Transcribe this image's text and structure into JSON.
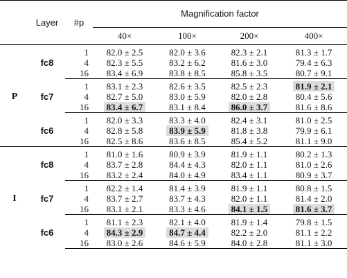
{
  "header": {
    "layer": "Layer",
    "p": "#p",
    "magnification": "Magnification factor",
    "mags": [
      "40×",
      "100×",
      "200×",
      "400×"
    ]
  },
  "groups": [
    {
      "label": "P",
      "layers": [
        {
          "name": "fc8",
          "rows": [
            {
              "p": "1",
              "cells": [
                {
                  "t": "82.0 ± 2.5",
                  "hl": false
                },
                {
                  "t": "82.0 ± 3.6",
                  "hl": false
                },
                {
                  "t": "82.3 ± 2.1",
                  "hl": false
                },
                {
                  "t": "81.3 ± 1.7",
                  "hl": false
                }
              ]
            },
            {
              "p": "4",
              "cells": [
                {
                  "t": "82.3 ± 5.5",
                  "hl": false
                },
                {
                  "t": "83.2 ± 6.2",
                  "hl": false
                },
                {
                  "t": "81.6 ± 3.0",
                  "hl": false
                },
                {
                  "t": "79.4 ± 6.3",
                  "hl": false
                }
              ]
            },
            {
              "p": "16",
              "cells": [
                {
                  "t": "83.4 ± 6.9",
                  "hl": false
                },
                {
                  "t": "83.8 ± 8.5",
                  "hl": false
                },
                {
                  "t": "85.8 ± 3.5",
                  "hl": false
                },
                {
                  "t": "80.7 ± 9.1",
                  "hl": false
                }
              ]
            }
          ]
        },
        {
          "name": "fc7",
          "rows": [
            {
              "p": "1",
              "cells": [
                {
                  "t": "83.1 ± 2.3",
                  "hl": false
                },
                {
                  "t": "82.6 ± 3.5",
                  "hl": false
                },
                {
                  "t": "82.5 ± 2.3",
                  "hl": false
                },
                {
                  "t": "81.9 ± 2.1",
                  "hl": true
                }
              ]
            },
            {
              "p": "4",
              "cells": [
                {
                  "t": "82.7 ± 5.0",
                  "hl": false
                },
                {
                  "t": "83.0 ± 5.9",
                  "hl": false
                },
                {
                  "t": "82.0 ± 2.8",
                  "hl": false
                },
                {
                  "t": "80.4 ± 5.6",
                  "hl": false
                }
              ]
            },
            {
              "p": "16",
              "cells": [
                {
                  "t": "83.4 ± 6.7",
                  "hl": true
                },
                {
                  "t": "83.1 ± 8.4",
                  "hl": false
                },
                {
                  "t": "86.0 ± 3.7",
                  "hl": true
                },
                {
                  "t": "81.6 ± 8.6",
                  "hl": false
                }
              ]
            }
          ]
        },
        {
          "name": "fc6",
          "rows": [
            {
              "p": "1",
              "cells": [
                {
                  "t": "82.0 ± 3.3",
                  "hl": false
                },
                {
                  "t": "83.3 ± 4.0",
                  "hl": false
                },
                {
                  "t": "82.4 ± 3.1",
                  "hl": false
                },
                {
                  "t": "81.0 ± 2.5",
                  "hl": false
                }
              ]
            },
            {
              "p": "4",
              "cells": [
                {
                  "t": "82.8 ± 5.8",
                  "hl": false
                },
                {
                  "t": "83.9 ± 5.9",
                  "hl": true
                },
                {
                  "t": "81.8 ± 3.8",
                  "hl": false
                },
                {
                  "t": "79.9 ± 6.1",
                  "hl": false
                }
              ]
            },
            {
              "p": "16",
              "cells": [
                {
                  "t": "82.5 ± 8.6",
                  "hl": false
                },
                {
                  "t": "83.6 ± 8.5",
                  "hl": false
                },
                {
                  "t": "85.4 ± 5.2",
                  "hl": false
                },
                {
                  "t": "81.1 ± 9.0",
                  "hl": false
                }
              ]
            }
          ]
        }
      ]
    },
    {
      "label": "I",
      "layers": [
        {
          "name": "fc8",
          "rows": [
            {
              "p": "1",
              "cells": [
                {
                  "t": "81.0 ± 1.6",
                  "hl": false
                },
                {
                  "t": "80.9 ± 3.9",
                  "hl": false
                },
                {
                  "t": "81.9 ± 1.1",
                  "hl": false
                },
                {
                  "t": "80.2 ± 1.3",
                  "hl": false
                }
              ]
            },
            {
              "p": "4",
              "cells": [
                {
                  "t": "83.7 ± 2.8",
                  "hl": false
                },
                {
                  "t": "84.4 ± 4.3",
                  "hl": false
                },
                {
                  "t": "82.0 ± 1.1",
                  "hl": false
                },
                {
                  "t": "81.0 ± 2.6",
                  "hl": false
                }
              ]
            },
            {
              "p": "16",
              "cells": [
                {
                  "t": "83.2 ± 2.4",
                  "hl": false
                },
                {
                  "t": "84.0 ± 4.9",
                  "hl": false
                },
                {
                  "t": "83.4 ± 1.1",
                  "hl": false
                },
                {
                  "t": "80.9 ± 3.7",
                  "hl": false
                }
              ]
            }
          ]
        },
        {
          "name": "fc7",
          "rows": [
            {
              "p": "1",
              "cells": [
                {
                  "t": "82.2 ± 1.4",
                  "hl": false
                },
                {
                  "t": "81.4 ± 3.9",
                  "hl": false
                },
                {
                  "t": "81.9 ± 1.1",
                  "hl": false
                },
                {
                  "t": "80.8 ± 1.5",
                  "hl": false
                }
              ]
            },
            {
              "p": "4",
              "cells": [
                {
                  "t": "83.7 ± 2.7",
                  "hl": false
                },
                {
                  "t": "83.7 ± 4.3",
                  "hl": false
                },
                {
                  "t": "82.0 ± 1.1",
                  "hl": false
                },
                {
                  "t": "81.4 ± 2.0",
                  "hl": false
                }
              ]
            },
            {
              "p": "16",
              "cells": [
                {
                  "t": "83.1 ± 2.1",
                  "hl": false
                },
                {
                  "t": "83.3 ± 4.6",
                  "hl": false
                },
                {
                  "t": "84.1 ± 1.5",
                  "hl": true
                },
                {
                  "t": "81.6 ± 3.7",
                  "hl": true
                }
              ]
            }
          ]
        },
        {
          "name": "fc6",
          "rows": [
            {
              "p": "1",
              "cells": [
                {
                  "t": "81.1 ± 2.3",
                  "hl": false
                },
                {
                  "t": "82.1 ± 4.0",
                  "hl": false
                },
                {
                  "t": "81.9 ± 1.4",
                  "hl": false
                },
                {
                  "t": "79.8 ± 1.5",
                  "hl": false
                }
              ]
            },
            {
              "p": "4",
              "cells": [
                {
                  "t": "84.3 ± 2.9",
                  "hl": true
                },
                {
                  "t": "84.7 ± 4.4",
                  "hl": true
                },
                {
                  "t": "82.2 ± 2.0",
                  "hl": false
                },
                {
                  "t": "81.1 ± 2.2",
                  "hl": false
                }
              ]
            },
            {
              "p": "16",
              "cells": [
                {
                  "t": "83.0 ± 2.6",
                  "hl": false
                },
                {
                  "t": "84.6 ± 5.9",
                  "hl": false
                },
                {
                  "t": "84.0 ± 2.8",
                  "hl": false
                },
                {
                  "t": "81.1 ± 3.0",
                  "hl": false
                }
              ]
            }
          ]
        }
      ]
    }
  ]
}
